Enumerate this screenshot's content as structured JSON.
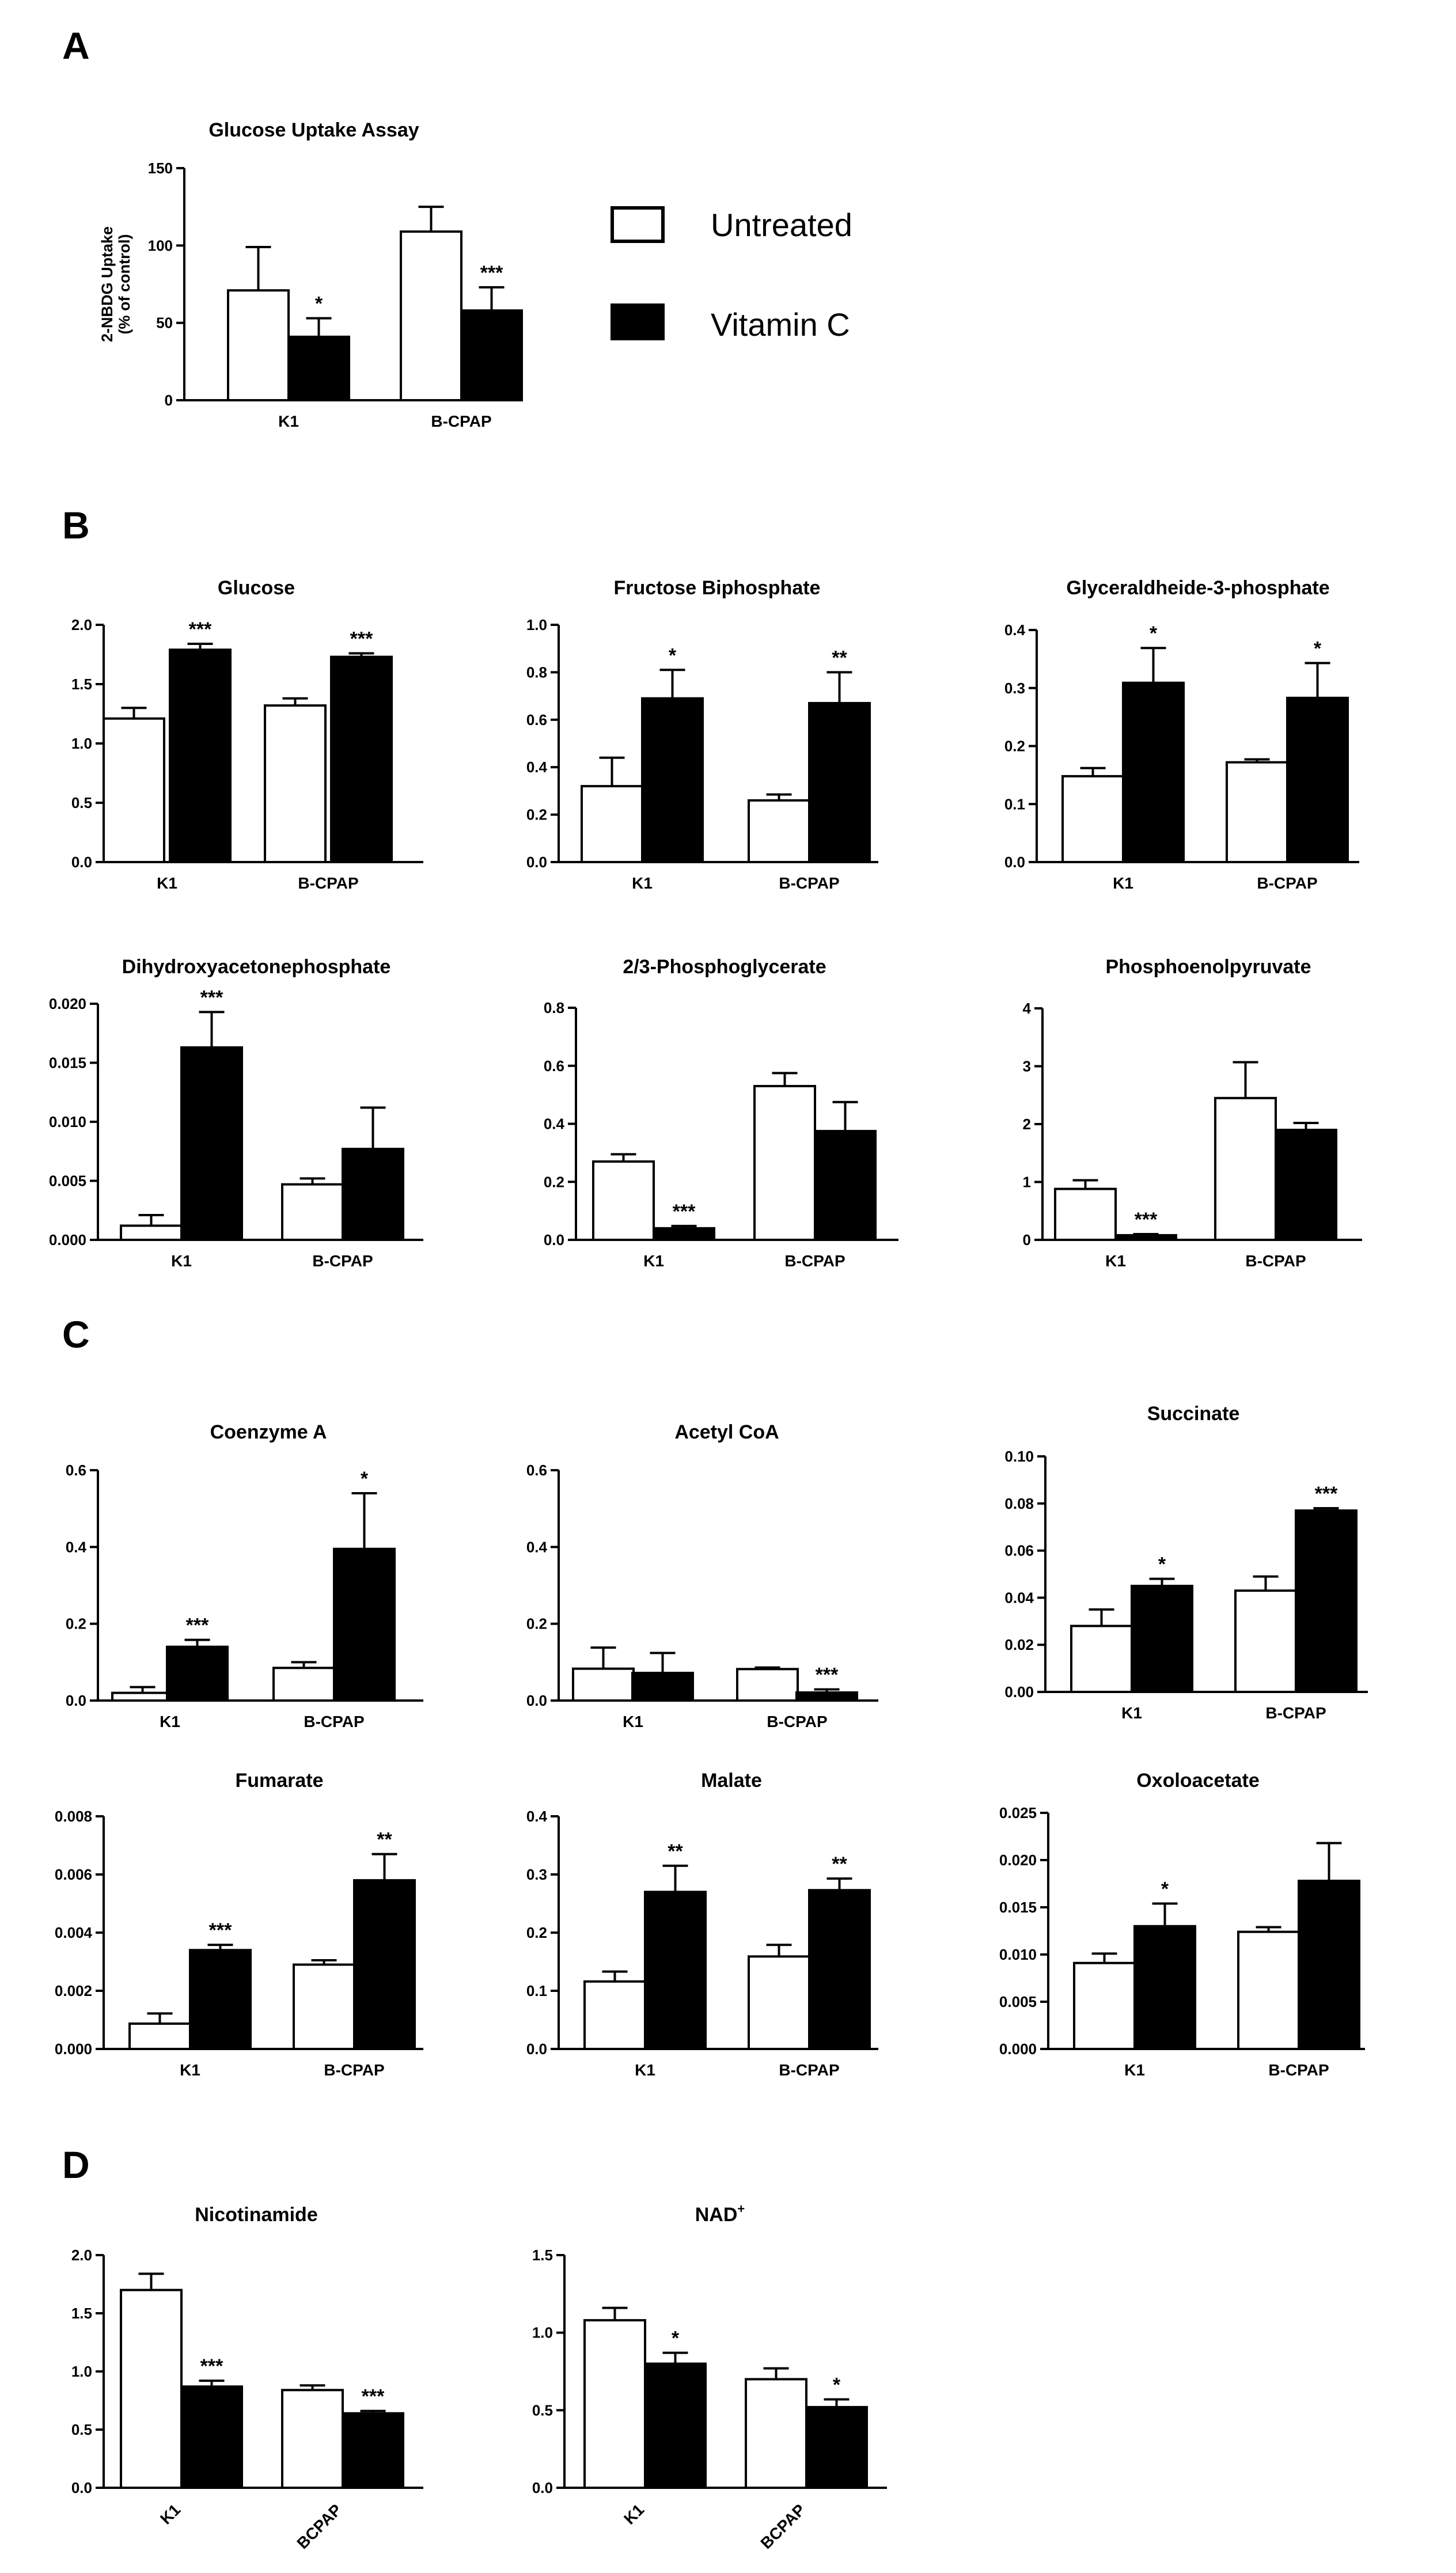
{
  "panel_labels": [
    "A",
    "B",
    "C",
    "D"
  ],
  "legend": {
    "untreated": "Untreated",
    "vitamin_c": "Vitamin C"
  },
  "colors": {
    "untreated": "#ffffff",
    "vitamin_c": "#000000",
    "stroke": "#000000"
  },
  "chart_data": [
    {
      "id": "a",
      "type": "bar",
      "title": "Glucose Uptake Assay",
      "ylabel": [
        "2-NBDG Uptake",
        "(% of control)"
      ],
      "ylim": [
        0,
        150
      ],
      "yticks": [
        0,
        50,
        100,
        150
      ],
      "categories": [
        "K1",
        "B-CPAP"
      ],
      "series": [
        {
          "name": "Untreated",
          "values": [
            71,
            109
          ],
          "errors": [
            28,
            16
          ]
        },
        {
          "name": "Vitamin C",
          "values": [
            41,
            58
          ],
          "errors": [
            12,
            15
          ]
        }
      ],
      "significance": {
        "Untreated": [
          "",
          ""
        ],
        "Vitamin C": [
          "*",
          "***"
        ]
      }
    },
    {
      "id": "glucose",
      "type": "bar",
      "title": "Glucose",
      "ylim": [
        0,
        2
      ],
      "yticks": [
        "0.0",
        "0.5",
        "1.0",
        "1.5",
        "2.0"
      ],
      "categories": [
        "K1",
        "B-CPAP"
      ],
      "series": [
        {
          "name": "Untreated",
          "values": [
            1.21,
            1.32
          ],
          "errors": [
            0.09,
            0.06
          ]
        },
        {
          "name": "Vitamin C",
          "values": [
            1.79,
            1.73
          ],
          "errors": [
            0.05,
            0.03
          ]
        }
      ],
      "significance": {
        "Untreated": [
          "",
          ""
        ],
        "Vitamin C": [
          "***",
          "***"
        ]
      }
    },
    {
      "id": "fbp",
      "type": "bar",
      "title": "Fructose Biphosphate",
      "ylim": [
        0,
        1
      ],
      "yticks": [
        "0.0",
        "0.2",
        "0.4",
        "0.6",
        "0.8",
        "1.0"
      ],
      "categories": [
        "K1",
        "B-CPAP"
      ],
      "series": [
        {
          "name": "Untreated",
          "values": [
            0.32,
            0.26
          ],
          "errors": [
            0.12,
            0.025
          ]
        },
        {
          "name": "Vitamin C",
          "values": [
            0.69,
            0.67
          ],
          "errors": [
            0.12,
            0.13
          ]
        }
      ],
      "significance": {
        "Untreated": [
          "",
          ""
        ],
        "Vitamin C": [
          "*",
          "**"
        ]
      }
    },
    {
      "id": "g3p",
      "type": "bar",
      "title": "Glyceraldheide-3-phosphate",
      "ylim": [
        0,
        0.4
      ],
      "yticks": [
        "0.0",
        "0.1",
        "0.2",
        "0.3",
        "0.4"
      ],
      "categories": [
        "K1",
        "B-CPAP"
      ],
      "series": [
        {
          "name": "Untreated",
          "values": [
            0.148,
            0.172
          ],
          "errors": [
            0.014,
            0.005
          ]
        },
        {
          "name": "Vitamin C",
          "values": [
            0.309,
            0.283
          ],
          "errors": [
            0.06,
            0.06
          ]
        }
      ],
      "significance": {
        "Untreated": [
          "",
          ""
        ],
        "Vitamin C": [
          "*",
          "*"
        ]
      }
    },
    {
      "id": "dhap",
      "type": "bar",
      "title": "Dihydroxyacetonephosphate",
      "ylim": [
        0,
        0.02
      ],
      "yticks": [
        "0.000",
        "0.005",
        "0.010",
        "0.015",
        "0.020"
      ],
      "categories": [
        "K1",
        "B-CPAP"
      ],
      "series": [
        {
          "name": "Untreated",
          "values": [
            0.0012,
            0.0047
          ],
          "errors": [
            0.0009,
            0.0005
          ]
        },
        {
          "name": "Vitamin C",
          "values": [
            0.0163,
            0.0077
          ],
          "errors": [
            0.003,
            0.0035
          ]
        }
      ],
      "significance": {
        "Untreated": [
          "",
          ""
        ],
        "Vitamin C": [
          "***",
          ""
        ]
      }
    },
    {
      "id": "pg",
      "type": "bar",
      "title": "2/3-Phosphoglycerate",
      "ylim": [
        0,
        0.8
      ],
      "yticks": [
        "0.0",
        "0.2",
        "0.4",
        "0.6",
        "0.8"
      ],
      "categories": [
        "K1",
        "B-CPAP"
      ],
      "series": [
        {
          "name": "Untreated",
          "values": [
            0.27,
            0.53
          ],
          "errors": [
            0.025,
            0.045
          ]
        },
        {
          "name": "Vitamin C",
          "values": [
            0.04,
            0.375
          ],
          "errors": [
            0.008,
            0.1
          ]
        }
      ],
      "significance": {
        "Untreated": [
          "",
          ""
        ],
        "Vitamin C": [
          "***",
          ""
        ]
      }
    },
    {
      "id": "pep",
      "type": "bar",
      "title": "Phosphoenolpyruvate",
      "ylim": [
        0,
        4
      ],
      "yticks": [
        "0",
        "1",
        "2",
        "3",
        "4"
      ],
      "categories": [
        "K1",
        "B-CPAP"
      ],
      "series": [
        {
          "name": "Untreated",
          "values": [
            0.88,
            2.45
          ],
          "errors": [
            0.15,
            0.62
          ]
        },
        {
          "name": "Vitamin C",
          "values": [
            0.08,
            1.9
          ],
          "errors": [
            0.02,
            0.12
          ]
        }
      ],
      "significance": {
        "Untreated": [
          "",
          ""
        ],
        "Vitamin C": [
          "***",
          ""
        ]
      }
    },
    {
      "id": "coa",
      "type": "bar",
      "title": "Coenzyme A",
      "ylim": [
        0,
        0.6
      ],
      "yticks": [
        "0.0",
        "0.2",
        "0.4",
        "0.6"
      ],
      "categories": [
        "K1",
        "B-CPAP"
      ],
      "series": [
        {
          "name": "Untreated",
          "values": [
            0.02,
            0.085
          ],
          "errors": [
            0.015,
            0.015
          ]
        },
        {
          "name": "Vitamin C",
          "values": [
            0.14,
            0.395
          ],
          "errors": [
            0.018,
            0.145
          ]
        }
      ],
      "significance": {
        "Untreated": [
          "",
          ""
        ],
        "Vitamin C": [
          "***",
          "*"
        ]
      }
    },
    {
      "id": "acoa",
      "type": "bar",
      "title": "Acetyl CoA",
      "ylim": [
        0,
        0.6
      ],
      "yticks": [
        "0.0",
        "0.2",
        "0.4",
        "0.6"
      ],
      "categories": [
        "K1",
        "B-CPAP"
      ],
      "series": [
        {
          "name": "Untreated",
          "values": [
            0.083,
            0.082
          ],
          "errors": [
            0.055,
            0.004
          ]
        },
        {
          "name": "Vitamin C",
          "values": [
            0.072,
            0.021
          ],
          "errors": [
            0.052,
            0.008
          ]
        }
      ],
      "significance": {
        "Untreated": [
          "",
          ""
        ],
        "Vitamin C": [
          "",
          "***"
        ]
      }
    },
    {
      "id": "succ",
      "type": "bar",
      "title": "Succinate",
      "ylim": [
        0,
        0.1
      ],
      "yticks": [
        "0.00",
        "0.02",
        "0.04",
        "0.06",
        "0.08",
        "0.10"
      ],
      "categories": [
        "K1",
        "B-CPAP"
      ],
      "series": [
        {
          "name": "Untreated",
          "values": [
            0.028,
            0.043
          ],
          "errors": [
            0.007,
            0.006
          ]
        },
        {
          "name": "Vitamin C",
          "values": [
            0.045,
            0.077
          ],
          "errors": [
            0.003,
            0.001
          ]
        }
      ],
      "significance": {
        "Untreated": [
          "",
          ""
        ],
        "Vitamin C": [
          "*",
          "***"
        ]
      }
    },
    {
      "id": "fum",
      "type": "bar",
      "title": "Fumarate",
      "ylim": [
        0,
        0.008
      ],
      "yticks": [
        "0.000",
        "0.002",
        "0.004",
        "0.006",
        "0.008"
      ],
      "categories": [
        "K1",
        "B-CPAP"
      ],
      "series": [
        {
          "name": "Untreated",
          "values": [
            0.00087,
            0.0029
          ],
          "errors": [
            0.00035,
            0.00015
          ]
        },
        {
          "name": "Vitamin C",
          "values": [
            0.0034,
            0.0058
          ],
          "errors": [
            0.00018,
            0.0009
          ]
        }
      ],
      "significance": {
        "Untreated": [
          "",
          ""
        ],
        "Vitamin C": [
          "***",
          "**"
        ]
      }
    },
    {
      "id": "mal",
      "type": "bar",
      "title": "Malate",
      "ylim": [
        0,
        0.4
      ],
      "yticks": [
        "0.0",
        "0.1",
        "0.2",
        "0.3",
        "0.4"
      ],
      "categories": [
        "K1",
        "B-CPAP"
      ],
      "series": [
        {
          "name": "Untreated",
          "values": [
            0.116,
            0.159
          ],
          "errors": [
            0.017,
            0.02
          ]
        },
        {
          "name": "Vitamin C",
          "values": [
            0.27,
            0.273
          ],
          "errors": [
            0.045,
            0.02
          ]
        }
      ],
      "significance": {
        "Untreated": [
          "",
          ""
        ],
        "Vitamin C": [
          "**",
          "**"
        ]
      }
    },
    {
      "id": "oxa",
      "type": "bar",
      "title": "Oxoloacetate",
      "ylim": [
        0,
        0.025
      ],
      "yticks": [
        "0.000",
        "0.005",
        "0.010",
        "0.015",
        "0.020",
        "0.025"
      ],
      "categories": [
        "K1",
        "B-CPAP"
      ],
      "series": [
        {
          "name": "Untreated",
          "values": [
            0.0091,
            0.0124
          ],
          "errors": [
            0.001,
            0.0005
          ]
        },
        {
          "name": "Vitamin C",
          "values": [
            0.013,
            0.0178
          ],
          "errors": [
            0.0024,
            0.004
          ]
        }
      ],
      "significance": {
        "Untreated": [
          "",
          ""
        ],
        "Vitamin C": [
          "*",
          ""
        ]
      }
    },
    {
      "id": "nic",
      "type": "bar",
      "title": "Nicotinamide",
      "ylim": [
        0,
        2
      ],
      "yticks": [
        "0.0",
        "0.5",
        "1.0",
        "1.5",
        "2.0"
      ],
      "categories": [
        "K1",
        "BCPAP"
      ],
      "rotated_categories": true,
      "series": [
        {
          "name": "Untreated",
          "values": [
            1.7,
            0.84
          ],
          "errors": [
            0.14,
            0.04
          ]
        },
        {
          "name": "Vitamin C",
          "values": [
            0.87,
            0.64
          ],
          "errors": [
            0.05,
            0.02
          ]
        }
      ],
      "significance": {
        "Untreated": [
          "",
          ""
        ],
        "Vitamin C": [
          "***",
          "***"
        ]
      }
    },
    {
      "id": "nad",
      "type": "bar",
      "title": "NAD",
      "title_superscript": "+",
      "ylim": [
        0,
        1.5
      ],
      "yticks": [
        "0.0",
        "0.5",
        "1.0",
        "1.5"
      ],
      "categories": [
        "K1",
        "BCPAP"
      ],
      "rotated_categories": true,
      "series": [
        {
          "name": "Untreated",
          "values": [
            1.08,
            0.7
          ],
          "errors": [
            0.08,
            0.07
          ]
        },
        {
          "name": "Vitamin C",
          "values": [
            0.8,
            0.52
          ],
          "errors": [
            0.07,
            0.05
          ]
        }
      ],
      "significance": {
        "Untreated": [
          "",
          ""
        ],
        "Vitamin C": [
          "*",
          "*"
        ]
      }
    }
  ]
}
